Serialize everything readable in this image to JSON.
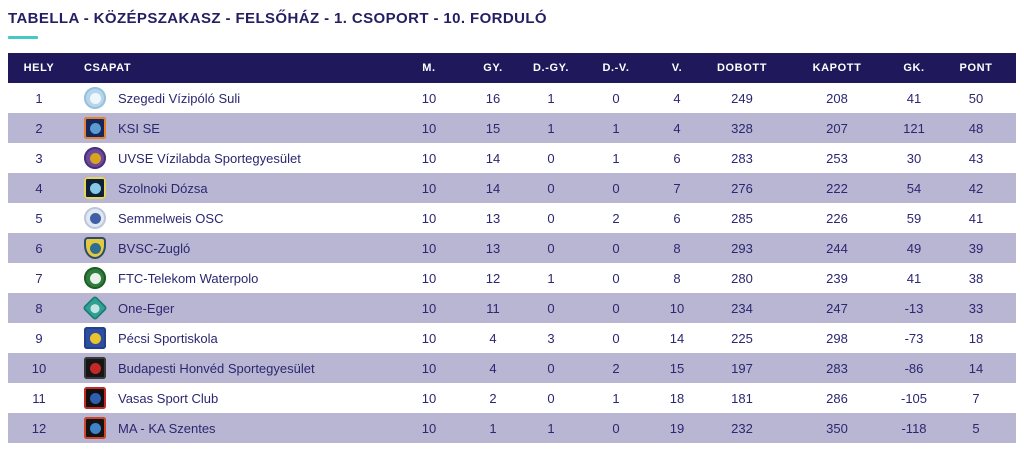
{
  "title": "TABELLA - KÖZÉPSZAKASZ - FELSŐHÁZ - 1. CSOPORT - 10. FORDULÓ",
  "colors": {
    "header_bg": "#1f195c",
    "header_text": "#ffffff",
    "row_bg": "#ffffff",
    "row_alt_bg": "#b8b6d2",
    "text_navy": "#2b2770",
    "accent_teal": "#45c8c6"
  },
  "table": {
    "columns": [
      {
        "key": "hely",
        "label": "HELY",
        "align": "center"
      },
      {
        "key": "csapat",
        "label": "CSAPAT",
        "align": "left"
      },
      {
        "key": "m",
        "label": "M.",
        "align": "center"
      },
      {
        "key": "gy",
        "label": "GY.",
        "align": "center"
      },
      {
        "key": "dgy",
        "label": "D.-GY.",
        "align": "center"
      },
      {
        "key": "dv",
        "label": "D.-V.",
        "align": "center"
      },
      {
        "key": "v",
        "label": "V.",
        "align": "center"
      },
      {
        "key": "dobott",
        "label": "DOBOTT",
        "align": "center"
      },
      {
        "key": "kapott",
        "label": "KAPOTT",
        "align": "center"
      },
      {
        "key": "gk",
        "label": "GK.",
        "align": "center"
      },
      {
        "key": "pont",
        "label": "PONT",
        "align": "center"
      }
    ],
    "rows": [
      {
        "hely": "1",
        "team": "Szegedi Vízipóló Suli",
        "logo": {
          "name": "szegedi-vizipolo-suli-crest-icon",
          "shape": "circle",
          "bg": "#b7d6ea",
          "fg": "#f0f7fc",
          "ring": "#96c0db"
        },
        "m": "10",
        "gy": "16",
        "dgy": "1",
        "dv": "0",
        "v": "4",
        "dobott": "249",
        "kapott": "208",
        "gk": "41",
        "pont": "50"
      },
      {
        "hely": "2",
        "team": "KSI SE",
        "logo": {
          "name": "ksi-se-crest-icon",
          "shape": "square",
          "bg": "#16275f",
          "fg": "#5b9bd0",
          "ring": "#e8832a"
        },
        "m": "10",
        "gy": "15",
        "dgy": "1",
        "dv": "1",
        "v": "4",
        "dobott": "328",
        "kapott": "207",
        "gk": "121",
        "pont": "48"
      },
      {
        "hely": "3",
        "team": "UVSE Vízilabda Sportegyesület",
        "logo": {
          "name": "uvse-crest-icon",
          "shape": "circle",
          "bg": "#6a4a9c",
          "fg": "#d9a31f",
          "ring": "#4a2f78"
        },
        "m": "10",
        "gy": "14",
        "dgy": "0",
        "dv": "1",
        "v": "6",
        "dobott": "283",
        "kapott": "253",
        "gk": "30",
        "pont": "43"
      },
      {
        "hely": "4",
        "team": "Szolnoki Dózsa",
        "logo": {
          "name": "szolnoki-dozsa-crest-icon",
          "shape": "square",
          "bg": "#0e2236",
          "fg": "#86c9e8",
          "ring": "#e8d464"
        },
        "m": "10",
        "gy": "14",
        "dgy": "0",
        "dv": "0",
        "v": "7",
        "dobott": "276",
        "kapott": "222",
        "gk": "54",
        "pont": "42"
      },
      {
        "hely": "5",
        "team": "Semmelweis OSC",
        "logo": {
          "name": "semmelweis-osc-crest-icon",
          "shape": "circle",
          "bg": "#e2e8f2",
          "fg": "#3f5fa6",
          "ring": "#b9c6dd"
        },
        "m": "10",
        "gy": "13",
        "dgy": "0",
        "dv": "2",
        "v": "6",
        "dobott": "285",
        "kapott": "226",
        "gk": "59",
        "pont": "41"
      },
      {
        "hely": "6",
        "team": "BVSC-Zugló",
        "logo": {
          "name": "bvsc-zuglo-crest-icon",
          "shape": "shield",
          "bg": "#e3c93f",
          "fg": "#2f6e8e",
          "ring": "#2a4a6e"
        },
        "m": "10",
        "gy": "13",
        "dgy": "0",
        "dv": "0",
        "v": "8",
        "dobott": "293",
        "kapott": "244",
        "gk": "49",
        "pont": "39"
      },
      {
        "hely": "7",
        "team": "FTC-Telekom Waterpolo",
        "logo": {
          "name": "ftc-telekom-crest-icon",
          "shape": "circle",
          "bg": "#2e7d3a",
          "fg": "#e9f1e9",
          "ring": "#1f5c2a"
        },
        "m": "10",
        "gy": "12",
        "dgy": "1",
        "dv": "0",
        "v": "8",
        "dobott": "280",
        "kapott": "239",
        "gk": "41",
        "pont": "38"
      },
      {
        "hely": "8",
        "team": "One-Eger",
        "logo": {
          "name": "one-eger-crest-icon",
          "shape": "diamond",
          "bg": "#2fa093",
          "fg": "#c3e5e0",
          "ring": "#1f7a70"
        },
        "m": "10",
        "gy": "11",
        "dgy": "0",
        "dv": "0",
        "v": "10",
        "dobott": "234",
        "kapott": "247",
        "gk": "-13",
        "pont": "33"
      },
      {
        "hely": "9",
        "team": "Pécsi Sportiskola",
        "logo": {
          "name": "pecsi-sportiskola-crest-icon",
          "shape": "square",
          "bg": "#2f4da0",
          "fg": "#e8c52a",
          "ring": "#24408a"
        },
        "m": "10",
        "gy": "4",
        "dgy": "3",
        "dv": "0",
        "v": "14",
        "dobott": "225",
        "kapott": "298",
        "gk": "-73",
        "pont": "18"
      },
      {
        "hely": "10",
        "team": "Budapesti Honvéd Sportegyesület",
        "logo": {
          "name": "budapesti-honved-crest-icon",
          "shape": "square",
          "bg": "#161616",
          "fg": "#c62828",
          "ring": "#3a3a3a"
        },
        "m": "10",
        "gy": "4",
        "dgy": "0",
        "dv": "2",
        "v": "15",
        "dobott": "197",
        "kapott": "283",
        "gk": "-86",
        "pont": "14"
      },
      {
        "hely": "11",
        "team": "Vasas Sport Club",
        "logo": {
          "name": "vasas-crest-icon",
          "shape": "square",
          "bg": "#101010",
          "fg": "#2f5fb0",
          "ring": "#c62828"
        },
        "m": "10",
        "gy": "2",
        "dgy": "0",
        "dv": "1",
        "v": "18",
        "dobott": "181",
        "kapott": "286",
        "gk": "-105",
        "pont": "7"
      },
      {
        "hely": "12",
        "team": "MA - KA Szentes",
        "logo": {
          "name": "ma-ka-szentes-crest-icon",
          "shape": "square",
          "bg": "#131313",
          "fg": "#3f82c8",
          "ring": "#d0452a"
        },
        "m": "10",
        "gy": "1",
        "dgy": "1",
        "dv": "0",
        "v": "19",
        "dobott": "232",
        "kapott": "350",
        "gk": "-118",
        "pont": "5"
      }
    ]
  }
}
